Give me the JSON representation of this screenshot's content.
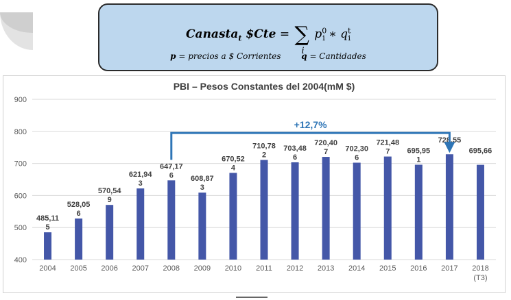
{
  "formula": {
    "lhs": "Canasta",
    "lhs_sub": "t",
    "lhs_suffix": "$Cte",
    "equals": "=",
    "sum_symbol": "∑",
    "sum_index": "i",
    "term_p": "p",
    "term_p_sub": "i",
    "term_p_sup": "0",
    "operator": "∗",
    "term_q": "q",
    "term_q_sub": "i",
    "term_q_sup": "t",
    "def_p_symbol": "p",
    "def_p_text": " = precios a $ Corrientes",
    "def_q_symbol": "q",
    "def_q_text": " = Cantidades"
  },
  "chart_data": {
    "type": "bar",
    "title": "PBI – Pesos Constantes del 2004(mM $)",
    "categories": [
      "2004",
      "2005",
      "2006",
      "2007",
      "2008",
      "2009",
      "2010",
      "2011",
      "2012",
      "2013",
      "2014",
      "2015",
      "2016",
      "2017",
      "2018"
    ],
    "category_sublabels": [
      "",
      "",
      "",
      "",
      "",
      "",
      "",
      "",
      "",
      "",
      "",
      "",
      "",
      "",
      "(T3)"
    ],
    "values": [
      485.115,
      528.056,
      570.549,
      621.943,
      647.176,
      608.873,
      670.524,
      710.782,
      703.486,
      720.407,
      702.306,
      721.487,
      695.951,
      728.55,
      695.664
    ],
    "data_labels_top": [
      "485,11",
      "528,05",
      "570,54",
      "621,94",
      "647,17",
      "608,87",
      "670,52",
      "710,78",
      "703,48",
      "720,40",
      "702,30",
      "721,48",
      "695,95",
      "728,55",
      "695,66"
    ],
    "data_labels_bottom": [
      "5",
      "6",
      "9",
      "3",
      "6",
      "3",
      "4",
      "2",
      "6",
      "7",
      "6",
      "7",
      "1",
      "",
      ""
    ],
    "ylim": [
      400,
      900
    ],
    "yticks": [
      400,
      500,
      600,
      700,
      800,
      900
    ],
    "grid": true,
    "bar_color": "#4457a8",
    "annotation": {
      "text": "+12,7%",
      "from_category": "2008",
      "to_category": "2017",
      "level": 795,
      "color": "#2e75b6"
    }
  }
}
